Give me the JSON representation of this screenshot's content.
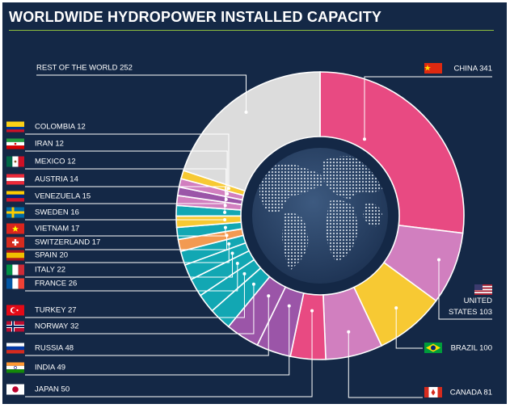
{
  "page": {
    "title": "WORLDWIDE HYDROPOWER INSTALLED CAPACITY",
    "background": "#142846",
    "rule_color": "#8fbf3f"
  },
  "chart_data": {
    "type": "pie",
    "subtype": "donut",
    "title": "WORLDWIDE HYDROPOWER INSTALLED CAPACITY",
    "slices": [
      {
        "label": "CHINA",
        "value": 341,
        "color": "#e84a82",
        "flag": "china"
      },
      {
        "label": "UNITED STATES",
        "value": 103,
        "color": "#d17fbf",
        "flag": "usa"
      },
      {
        "label": "BRAZIL",
        "value": 100,
        "color": "#f7c933",
        "flag": "brazil"
      },
      {
        "label": "CANADA",
        "value": 81,
        "color": "#d17fbf",
        "flag": "canada"
      },
      {
        "label": "JAPAN",
        "value": 50,
        "color": "#e84a82",
        "flag": "japan"
      },
      {
        "label": "INDIA",
        "value": 49,
        "color": "#9b55a8",
        "flag": "india"
      },
      {
        "label": "RUSSIA",
        "value": 48,
        "color": "#9b55a8",
        "flag": "russia"
      },
      {
        "label": "NORWAY",
        "value": 32,
        "color": "#12a7b3",
        "flag": "norway"
      },
      {
        "label": "TURKEY",
        "value": 27,
        "color": "#12a7b3",
        "flag": "turkey"
      },
      {
        "label": "FRANCE",
        "value": 26,
        "color": "#12a7b3",
        "flag": "france"
      },
      {
        "label": "ITALY",
        "value": 22,
        "color": "#12a7b3",
        "flag": "italy"
      },
      {
        "label": "SPAIN",
        "value": 20,
        "color": "#12a7b3",
        "flag": "spain"
      },
      {
        "label": "SWITZERLAND",
        "value": 17,
        "color": "#f29a52",
        "flag": "switzerland"
      },
      {
        "label": "VIETNAM",
        "value": 17,
        "color": "#12a7b3",
        "flag": "vietnam"
      },
      {
        "label": "SWEDEN",
        "value": 16,
        "color": "#f7c933",
        "flag": "sweden"
      },
      {
        "label": "VENEZUELA",
        "value": 15,
        "color": "#12a7b3",
        "flag": "venezuela"
      },
      {
        "label": "AUSTRIA",
        "value": 14,
        "color": "#d17fbf",
        "flag": "austria"
      },
      {
        "label": "MEXICO",
        "value": 12,
        "color": "#9b55a8",
        "flag": "mexico"
      },
      {
        "label": "IRAN",
        "value": 12,
        "color": "#d17fbf",
        "flag": "iran"
      },
      {
        "label": "COLOMBIA",
        "value": 12,
        "color": "#f7c933",
        "flag": "colombia"
      },
      {
        "label": "REST OF THE WORLD",
        "value": 252,
        "color": "#dcdcdc",
        "flag": ""
      }
    ],
    "center_graphic": "globe",
    "legend": "none"
  }
}
